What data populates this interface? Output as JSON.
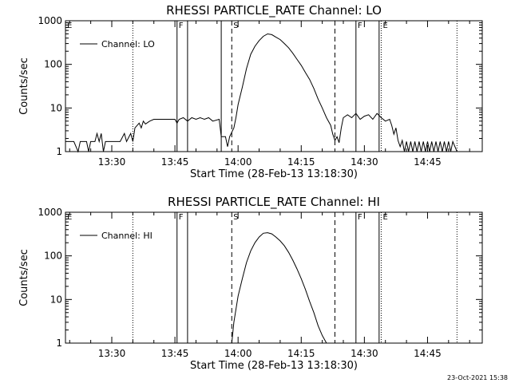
{
  "footer": {
    "timestamp": "23-Oct-2021 15:38"
  },
  "chart_data": [
    {
      "type": "line",
      "title": "RHESSI PARTICLE_RATE Channel: LO",
      "xlabel": "Start Time (28-Feb-13 13:18:30)",
      "ylabel": "Counts/sec",
      "yscale": "log",
      "ylim": [
        1,
        1000
      ],
      "xlim": [
        "13:19",
        "14:58"
      ],
      "x_ticks": [
        "13:30",
        "13:45",
        "14:00",
        "14:15",
        "14:30",
        "14:45"
      ],
      "y_ticks": [
        "1",
        "10",
        "100",
        "1000"
      ],
      "legend": {
        "placement": "top-left",
        "entries": [
          "Channel: LO"
        ]
      },
      "markers": [
        {
          "label": "E",
          "time": "13:18",
          "style": "dotted"
        },
        {
          "label": "",
          "time": "13:35",
          "style": "dotted"
        },
        {
          "label": "F",
          "time": "13:45.5",
          "style": "solid"
        },
        {
          "label": "",
          "time": "13:48",
          "style": "solid"
        },
        {
          "label": "",
          "time": "13:56",
          "style": "solid"
        },
        {
          "label": "S",
          "time": "13:58.5",
          "style": "dashed"
        },
        {
          "label": "",
          "time": "14:23",
          "style": "dashed"
        },
        {
          "label": "F",
          "time": "14:28",
          "style": "solid"
        },
        {
          "label": "",
          "time": "14:33.5",
          "style": "solid"
        },
        {
          "label": "E",
          "time": "14:34",
          "style": "dotted"
        },
        {
          "label": "",
          "time": "14:52",
          "style": "dotted"
        }
      ],
      "series": [
        {
          "name": "Channel: LO",
          "points": [
            [
              "13:19",
              1.7
            ],
            [
              "13:21",
              1.7
            ],
            [
              "13:22",
              1.0
            ],
            [
              "13:22.5",
              1.7
            ],
            [
              "13:24",
              1.7
            ],
            [
              "13:24.5",
              1.0
            ],
            [
              "13:25",
              1.7
            ],
            [
              "13:26",
              1.7
            ],
            [
              "13:26.5",
              2.6
            ],
            [
              "13:27",
              1.7
            ],
            [
              "13:27.5",
              2.6
            ],
            [
              "13:28",
              1.0
            ],
            [
              "13:28.5",
              1.7
            ],
            [
              "13:32",
              1.7
            ],
            [
              "13:33",
              2.6
            ],
            [
              "13:33.5",
              1.7
            ],
            [
              "13:34.5",
              2.6
            ],
            [
              "13:35",
              1.7
            ],
            [
              "13:35.5",
              3.5
            ],
            [
              "13:36.5",
              4.5
            ],
            [
              "13:37",
              3.5
            ],
            [
              "13:37.5",
              5.0
            ],
            [
              "13:38",
              4.3
            ],
            [
              "13:39",
              5.0
            ],
            [
              "13:40",
              5.5
            ],
            [
              "13:45",
              5.5
            ],
            [
              "13:45.5",
              4.5
            ],
            [
              "13:46",
              5.5
            ],
            [
              "13:47",
              6.0
            ],
            [
              "13:48",
              5.0
            ],
            [
              "13:49",
              6.0
            ],
            [
              "13:50",
              5.5
            ],
            [
              "13:51",
              6.0
            ],
            [
              "13:52",
              5.5
            ],
            [
              "13:53",
              6.0
            ],
            [
              "13:54",
              5.0
            ],
            [
              "13:55.5",
              5.5
            ],
            [
              "13:56",
              2.2
            ],
            [
              "13:57",
              2.2
            ],
            [
              "13:57.5",
              1.3
            ],
            [
              "13:58",
              2.2
            ],
            [
              "13:59",
              3.5
            ],
            [
              "13:59.5",
              6.0
            ],
            [
              "14:00",
              12
            ],
            [
              "14:01",
              30
            ],
            [
              "14:02",
              80
            ],
            [
              "14:03",
              170
            ],
            [
              "14:04",
              260
            ],
            [
              "14:05",
              350
            ],
            [
              "14:06",
              440
            ],
            [
              "14:07",
              500
            ],
            [
              "14:08",
              480
            ],
            [
              "14:09",
              420
            ],
            [
              "14:10",
              370
            ],
            [
              "14:11",
              300
            ],
            [
              "14:12",
              240
            ],
            [
              "14:13",
              180
            ],
            [
              "14:14",
              130
            ],
            [
              "14:15",
              95
            ],
            [
              "14:16",
              65
            ],
            [
              "14:17",
              45
            ],
            [
              "14:18",
              28
            ],
            [
              "14:19",
              16
            ],
            [
              "14:20",
              10
            ],
            [
              "14:21",
              6.0
            ],
            [
              "14:22",
              4.0
            ],
            [
              "14:22.5",
              2.5
            ],
            [
              "14:23",
              1.8
            ],
            [
              "14:23.5",
              2.2
            ],
            [
              "14:24",
              1.6
            ],
            [
              "14:24.5",
              3.5
            ],
            [
              "14:25",
              6.0
            ],
            [
              "14:26",
              7.0
            ],
            [
              "14:27",
              6.0
            ],
            [
              "14:28",
              7.5
            ],
            [
              "14:29",
              5.5
            ],
            [
              "14:30",
              6.5
            ],
            [
              "14:31",
              7.0
            ],
            [
              "14:32",
              5.5
            ],
            [
              "14:33",
              7.5
            ],
            [
              "14:34",
              6.0
            ],
            [
              "14:35",
              5.0
            ],
            [
              "14:36",
              5.5
            ],
            [
              "14:36.5",
              4.0
            ],
            [
              "14:37",
              2.5
            ],
            [
              "14:37.5",
              3.5
            ],
            [
              "14:38",
              1.8
            ],
            [
              "14:38.5",
              1.3
            ],
            [
              "14:39",
              1.8
            ],
            [
              "14:39.5",
              1.0
            ],
            [
              "14:40",
              1.7
            ],
            [
              "14:40.5",
              1.0
            ],
            [
              "14:41",
              1.7
            ],
            [
              "14:41.5",
              1.0
            ],
            [
              "14:42",
              1.7
            ],
            [
              "14:42.5",
              1.0
            ],
            [
              "14:43",
              1.7
            ],
            [
              "14:43.5",
              1.0
            ],
            [
              "14:44",
              1.7
            ],
            [
              "14:44.5",
              1.0
            ],
            [
              "14:45",
              1.7
            ],
            [
              "14:45.5",
              1.0
            ],
            [
              "14:46",
              1.7
            ],
            [
              "14:46.5",
              1.0
            ],
            [
              "14:47",
              1.7
            ],
            [
              "14:47.5",
              1.0
            ],
            [
              "14:48",
              1.7
            ],
            [
              "14:48.5",
              1.0
            ],
            [
              "14:49",
              1.7
            ],
            [
              "14:49.5",
              1.0
            ],
            [
              "14:50",
              1.7
            ],
            [
              "14:50.5",
              1.0
            ],
            [
              "14:51",
              1.7
            ],
            [
              "14:52",
              1.0
            ]
          ]
        }
      ]
    },
    {
      "type": "line",
      "title": "RHESSI PARTICLE_RATE Channel: HI",
      "xlabel": "Start Time (28-Feb-13 13:18:30)",
      "ylabel": "Counts/sec",
      "yscale": "log",
      "ylim": [
        1,
        1000
      ],
      "xlim": [
        "13:19",
        "14:58"
      ],
      "x_ticks": [
        "13:30",
        "13:45",
        "14:00",
        "14:15",
        "14:30",
        "14:45"
      ],
      "y_ticks": [
        "1",
        "10",
        "100",
        "1000"
      ],
      "legend": {
        "placement": "top-left",
        "entries": [
          "Channel: HI"
        ]
      },
      "markers": [
        {
          "label": "E",
          "time": "13:18",
          "style": "dotted"
        },
        {
          "label": "",
          "time": "13:35",
          "style": "dotted"
        },
        {
          "label": "F",
          "time": "13:45.5",
          "style": "solid"
        },
        {
          "label": "",
          "time": "13:48",
          "style": "solid"
        },
        {
          "label": "S",
          "time": "13:58.5",
          "style": "dashed"
        },
        {
          "label": "",
          "time": "14:23",
          "style": "dashed"
        },
        {
          "label": "F",
          "time": "14:28",
          "style": "solid"
        },
        {
          "label": "",
          "time": "14:33.5",
          "style": "solid"
        },
        {
          "label": "E",
          "time": "14:34",
          "style": "dotted"
        },
        {
          "label": "",
          "time": "14:52",
          "style": "dotted"
        }
      ],
      "series": [
        {
          "name": "Channel: HI",
          "points": [
            [
              "13:58.5",
              1.0
            ],
            [
              "13:59",
              3
            ],
            [
              "14:00",
              12
            ],
            [
              "14:01",
              30
            ],
            [
              "14:02",
              70
            ],
            [
              "14:03",
              130
            ],
            [
              "14:04",
              200
            ],
            [
              "14:05",
              270
            ],
            [
              "14:06",
              330
            ],
            [
              "14:07",
              340
            ],
            [
              "14:08",
              320
            ],
            [
              "14:09",
              270
            ],
            [
              "14:10",
              220
            ],
            [
              "14:11",
              170
            ],
            [
              "14:12",
              120
            ],
            [
              "14:13",
              80
            ],
            [
              "14:14",
              50
            ],
            [
              "14:15",
              30
            ],
            [
              "14:16",
              17
            ],
            [
              "14:17",
              9
            ],
            [
              "14:18",
              5
            ],
            [
              "14:19",
              2.5
            ],
            [
              "14:20",
              1.5
            ],
            [
              "14:21",
              1.0
            ]
          ]
        }
      ]
    }
  ]
}
